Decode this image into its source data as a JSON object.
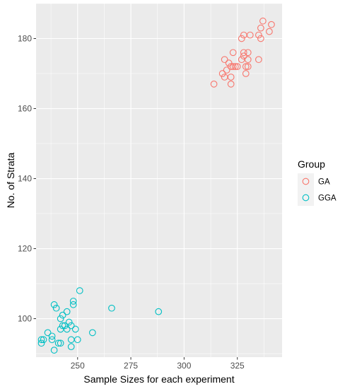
{
  "chart_data": {
    "type": "scatter",
    "title": "",
    "xlabel": "Sample Sizes for each experiment",
    "ylabel": "No. of Strata",
    "xlim": [
      230.5,
      346
    ],
    "ylim": [
      89,
      190
    ],
    "x_ticks": [
      250,
      275,
      300,
      325
    ],
    "y_ticks": [
      100,
      120,
      140,
      160,
      180
    ],
    "grid": true,
    "legend": {
      "title": "Group",
      "position": "right"
    },
    "series": [
      {
        "name": "GA",
        "color": "#F8766D",
        "points": [
          [
            314,
            167
          ],
          [
            318,
            170
          ],
          [
            319,
            169
          ],
          [
            320,
            171
          ],
          [
            319,
            174
          ],
          [
            321,
            173
          ],
          [
            322,
            167
          ],
          [
            322,
            169
          ],
          [
            322,
            172
          ],
          [
            323,
            172
          ],
          [
            323,
            176
          ],
          [
            324,
            172
          ],
          [
            325,
            172
          ],
          [
            327,
            174
          ],
          [
            327,
            180
          ],
          [
            328,
            175
          ],
          [
            328,
            176
          ],
          [
            328,
            181
          ],
          [
            329,
            170
          ],
          [
            329,
            172
          ],
          [
            330,
            172
          ],
          [
            330,
            174
          ],
          [
            330,
            176
          ],
          [
            331,
            181
          ],
          [
            335,
            174
          ],
          [
            335,
            181
          ],
          [
            336,
            180
          ],
          [
            336,
            183
          ],
          [
            337,
            185
          ],
          [
            340,
            182
          ],
          [
            341,
            184
          ]
        ]
      },
      {
        "name": "GGA",
        "color": "#00BFC4",
        "points": [
          [
            233,
            93
          ],
          [
            233,
            94
          ],
          [
            234,
            94
          ],
          [
            236,
            96
          ],
          [
            238,
            94
          ],
          [
            238,
            95
          ],
          [
            239,
            91
          ],
          [
            239,
            104
          ],
          [
            240,
            103
          ],
          [
            241,
            93
          ],
          [
            242,
            93
          ],
          [
            242,
            97
          ],
          [
            242,
            100
          ],
          [
            243,
            101
          ],
          [
            243,
            98
          ],
          [
            244,
            98
          ],
          [
            245,
            102
          ],
          [
            245,
            97
          ],
          [
            246,
            99
          ],
          [
            247,
            92
          ],
          [
            247,
            94
          ],
          [
            247,
            98
          ],
          [
            248,
            104
          ],
          [
            248,
            105
          ],
          [
            249,
            97
          ],
          [
            250,
            94
          ],
          [
            251,
            108
          ],
          [
            257,
            96
          ],
          [
            266,
            103
          ],
          [
            288,
            102
          ]
        ]
      }
    ]
  }
}
